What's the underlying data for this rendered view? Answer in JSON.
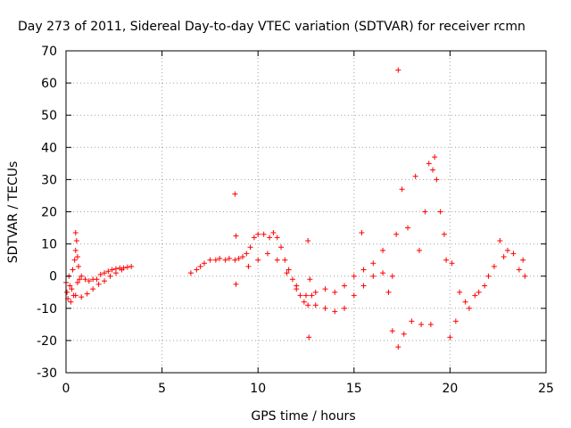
{
  "chart_data": {
    "type": "scatter",
    "title": "Day 273 of 2011, Sidereal Day-to-day VTEC variation (SDTVAR) for receiver rcmn",
    "xlabel": "GPS time / hours",
    "ylabel": "SDTVAR / TECUs",
    "xlim": [
      0,
      25
    ],
    "ylim": [
      -30,
      70
    ],
    "xticks": [
      0,
      5,
      10,
      15,
      20,
      25
    ],
    "yticks": [
      -30,
      -20,
      -10,
      0,
      10,
      20,
      30,
      40,
      50,
      60,
      70
    ],
    "grid": true,
    "marker": "+",
    "color": "#ff0000",
    "series": [
      {
        "name": "SDTVAR",
        "points": [
          [
            0.0,
            -2
          ],
          [
            0.05,
            -5
          ],
          [
            0.1,
            -7
          ],
          [
            0.15,
            0
          ],
          [
            0.2,
            -3
          ],
          [
            0.25,
            -8
          ],
          [
            0.3,
            -4
          ],
          [
            0.35,
            2
          ],
          [
            0.4,
            -6
          ],
          [
            0.45,
            5
          ],
          [
            0.5,
            8
          ],
          [
            0.5,
            13.5
          ],
          [
            0.55,
            11
          ],
          [
            0.6,
            6
          ],
          [
            0.6,
            -2
          ],
          [
            0.65,
            3
          ],
          [
            0.7,
            -1
          ],
          [
            0.8,
            0
          ],
          [
            1.0,
            -1
          ],
          [
            1.2,
            -1.5
          ],
          [
            1.4,
            -1
          ],
          [
            1.6,
            -1
          ],
          [
            1.8,
            0.5
          ],
          [
            2.0,
            1
          ],
          [
            2.2,
            1.5
          ],
          [
            2.4,
            2
          ],
          [
            2.6,
            2.3
          ],
          [
            2.8,
            2.5
          ],
          [
            3.0,
            2.5
          ],
          [
            3.2,
            2.8
          ],
          [
            3.4,
            3
          ],
          [
            0.5,
            -6
          ],
          [
            0.8,
            -6.5
          ],
          [
            1.1,
            -5.5
          ],
          [
            1.4,
            -4
          ],
          [
            1.7,
            -2.5
          ],
          [
            2.0,
            -1.5
          ],
          [
            2.3,
            0
          ],
          [
            2.6,
            1
          ],
          [
            2.9,
            2
          ],
          [
            6.5,
            1
          ],
          [
            6.8,
            2
          ],
          [
            7.0,
            3
          ],
          [
            7.2,
            4
          ],
          [
            7.5,
            5
          ],
          [
            7.8,
            5
          ],
          [
            8.0,
            5.5
          ],
          [
            8.3,
            5
          ],
          [
            8.5,
            5.5
          ],
          [
            8.8,
            5
          ],
          [
            8.8,
            25.5
          ],
          [
            8.85,
            12.5
          ],
          [
            8.85,
            -2.5
          ],
          [
            9.0,
            5.5
          ],
          [
            9.2,
            6
          ],
          [
            9.4,
            7
          ],
          [
            9.6,
            9
          ],
          [
            9.8,
            12
          ],
          [
            10.0,
            13
          ],
          [
            10.3,
            13
          ],
          [
            10.6,
            12
          ],
          [
            10.8,
            13.5
          ],
          [
            11.0,
            12
          ],
          [
            11.2,
            9
          ],
          [
            11.4,
            5
          ],
          [
            11.6,
            2
          ],
          [
            11.8,
            -1
          ],
          [
            12.0,
            -4
          ],
          [
            12.2,
            -6
          ],
          [
            12.4,
            -8
          ],
          [
            12.6,
            -9
          ],
          [
            12.6,
            11
          ],
          [
            12.65,
            -19
          ],
          [
            12.7,
            -1
          ],
          [
            12.8,
            -6
          ],
          [
            13.0,
            -9
          ],
          [
            13.5,
            -10
          ],
          [
            14.0,
            -11
          ],
          [
            14.5,
            -10
          ],
          [
            15.0,
            -6
          ],
          [
            15.5,
            -3
          ],
          [
            16.0,
            0
          ],
          [
            16.5,
            1
          ],
          [
            17.0,
            0
          ],
          [
            15.4,
            13.5
          ],
          [
            17.3,
            64
          ],
          [
            9.5,
            3
          ],
          [
            10.0,
            5
          ],
          [
            10.5,
            7
          ],
          [
            11.0,
            5
          ],
          [
            11.5,
            1
          ],
          [
            12.0,
            -3
          ],
          [
            12.5,
            -6
          ],
          [
            13.0,
            -5
          ],
          [
            13.5,
            -4
          ],
          [
            14.0,
            -5
          ],
          [
            14.5,
            -3
          ],
          [
            15.0,
            0
          ],
          [
            15.5,
            2
          ],
          [
            16.0,
            4
          ],
          [
            16.5,
            8
          ],
          [
            16.8,
            -5
          ],
          [
            17.0,
            -17
          ],
          [
            17.2,
            13
          ],
          [
            17.3,
            -22
          ],
          [
            17.5,
            27
          ],
          [
            17.6,
            -18
          ],
          [
            17.8,
            15
          ],
          [
            18.0,
            -14
          ],
          [
            18.2,
            31
          ],
          [
            18.4,
            8
          ],
          [
            18.5,
            -15
          ],
          [
            18.7,
            20
          ],
          [
            18.9,
            35
          ],
          [
            19.0,
            -15
          ],
          [
            19.1,
            33
          ],
          [
            19.2,
            37
          ],
          [
            19.3,
            30
          ],
          [
            19.5,
            20
          ],
          [
            19.7,
            13
          ],
          [
            19.8,
            5
          ],
          [
            20.0,
            -19
          ],
          [
            20.1,
            4
          ],
          [
            20.3,
            -14
          ],
          [
            20.5,
            -5
          ],
          [
            20.8,
            -8
          ],
          [
            21.0,
            -10
          ],
          [
            21.3,
            -6
          ],
          [
            21.5,
            -5
          ],
          [
            21.8,
            -3
          ],
          [
            22.0,
            0
          ],
          [
            22.3,
            3
          ],
          [
            22.6,
            11
          ],
          [
            22.8,
            6
          ],
          [
            23.0,
            8
          ],
          [
            23.3,
            7
          ],
          [
            23.6,
            2
          ],
          [
            23.8,
            5
          ],
          [
            23.9,
            0
          ]
        ]
      }
    ]
  }
}
